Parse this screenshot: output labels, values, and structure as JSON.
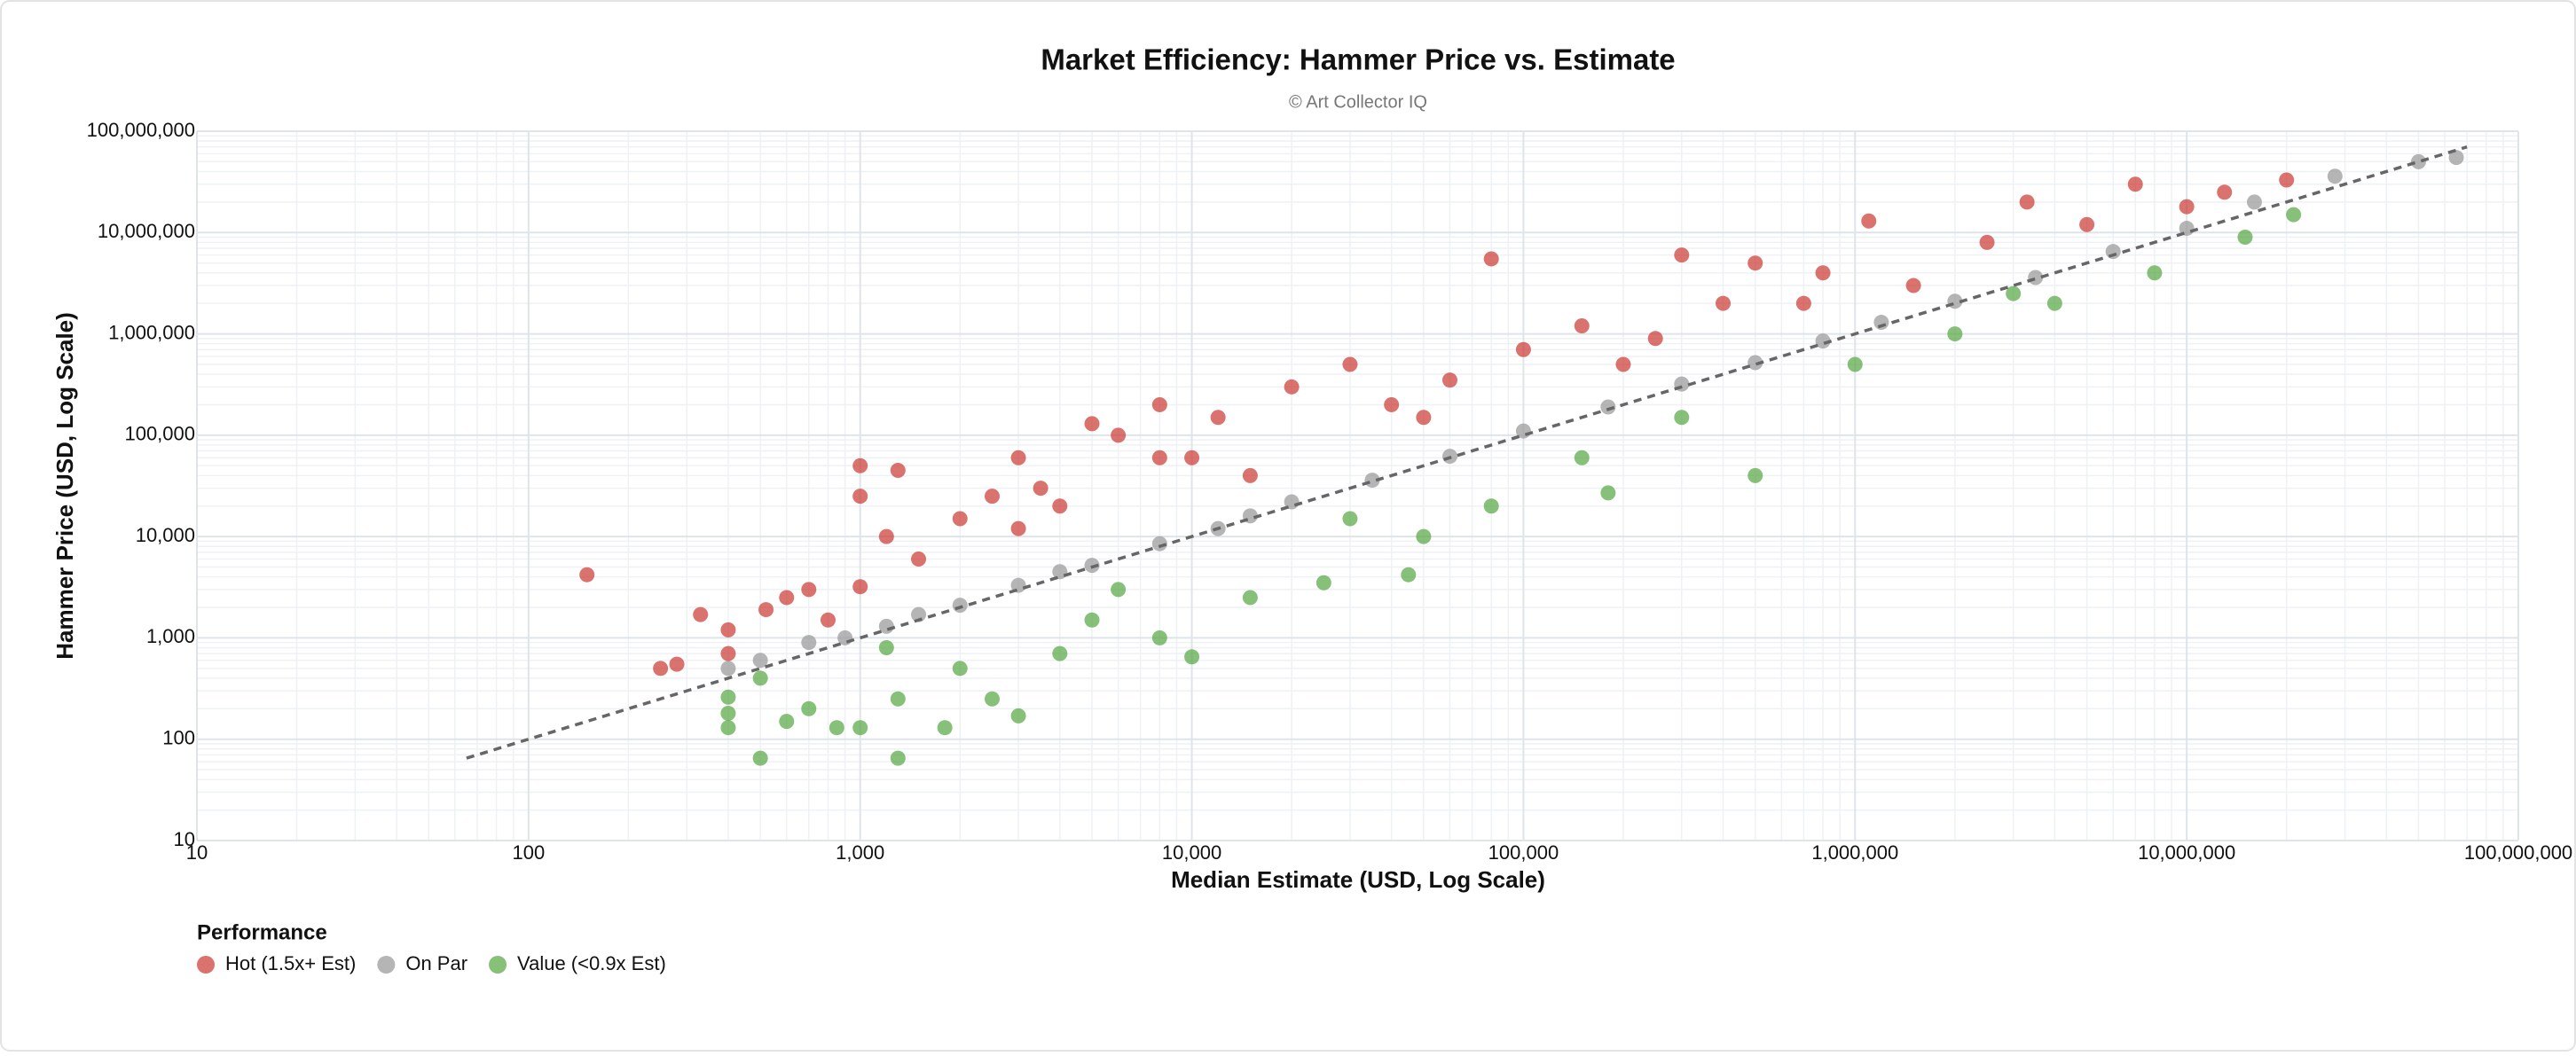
{
  "chart_data": {
    "type": "scatter",
    "title": "Market Efficiency: Hammer Price vs. Estimate",
    "subtitle": "© Art Collector IQ",
    "x_label": "Median Estimate (USD, Log Scale)",
    "y_label": "Hammer Price (USD, Log Scale)",
    "x_log": true,
    "y_log": true,
    "grid": true,
    "xlim": [
      10,
      100000000
    ],
    "ylim": [
      10,
      100000000
    ],
    "xticks": [
      10,
      100,
      {
        "value": 1000,
        "label": "1,000"
      },
      {
        "value": 10000,
        "label": "10,000"
      },
      {
        "value": 100000,
        "label": "100,000"
      },
      {
        "value": 1000000,
        "label": "1,000,000"
      },
      {
        "value": 10000000,
        "label": "10,000,000"
      },
      {
        "value": 100000000,
        "label": "100,000,000"
      }
    ],
    "yticks": [
      10,
      100,
      {
        "value": 1000,
        "label": "1,000"
      },
      {
        "value": 10000,
        "label": "10,000"
      },
      {
        "value": 100000,
        "label": "100,000"
      },
      {
        "value": 1000000,
        "label": "1,000,000"
      },
      {
        "value": 10000000,
        "label": "10,000,000"
      },
      {
        "value": 100000000,
        "label": "100,000,000"
      }
    ],
    "legend_title": "Performance",
    "legend_position": "bottom-left",
    "reference_line": {
      "x": [
        65,
        70000000
      ],
      "y": [
        65,
        70000000
      ],
      "color": "#666666"
    },
    "series": [
      {
        "name": "Hot (1.5x+ Est)",
        "color": "#cc3b36",
        "x": [
          150,
          250,
          280,
          330,
          400,
          400,
          520,
          600,
          700,
          800,
          1000,
          1000,
          1000,
          1200,
          1300,
          1500,
          2000,
          2500,
          3000,
          3500,
          4000,
          5000,
          6000,
          8000,
          10000,
          12000,
          15000,
          20000,
          30000,
          40000,
          60000,
          80000,
          100000,
          150000,
          200000,
          300000,
          400000,
          500000,
          800000,
          1100000,
          1500000,
          2500000,
          3300000,
          5000000,
          7000000,
          10000000,
          13000000,
          20000000,
          8000,
          3000,
          50000,
          250000,
          700000
        ],
        "values": [
          4200,
          500,
          550,
          1700,
          1200,
          700,
          1900,
          2500,
          3000,
          1500,
          3200,
          50000,
          25000,
          10000,
          45000,
          6000,
          15000,
          25000,
          60000,
          30000,
          20000,
          130000,
          100000,
          200000,
          60000,
          150000,
          40000,
          300000,
          500000,
          200000,
          350000,
          5500000,
          700000,
          1200000,
          500000,
          6000000,
          2000000,
          5000000,
          4000000,
          13000000,
          3000000,
          8000000,
          20000000,
          12000000,
          30000000,
          18000000,
          25000000,
          33000000,
          60000,
          12000,
          150000,
          900000,
          2000000
        ]
      },
      {
        "name": "On Par",
        "color": "#999999",
        "x": [
          400,
          500,
          700,
          900,
          1200,
          2000,
          3000,
          5000,
          8000,
          12000,
          20000,
          35000,
          60000,
          100000,
          180000,
          300000,
          500000,
          800000,
          1200000,
          2000000,
          3500000,
          6000000,
          10000000,
          16000000,
          28000000,
          50000000,
          65000000,
          1500,
          4000,
          15000
        ],
        "values": [
          500,
          600,
          900,
          1000,
          1300,
          2100,
          3300,
          5200,
          8500,
          12000,
          22000,
          36000,
          62000,
          110000,
          190000,
          320000,
          520000,
          850000,
          1300000,
          2100000,
          3600000,
          6500000,
          11000000,
          20000000,
          36000000,
          50000000,
          55000000,
          1700,
          4500,
          16000
        ]
      },
      {
        "name": "Value (<0.9x Est)",
        "color": "#58a845",
        "x": [
          400,
          400,
          400,
          500,
          500,
          600,
          700,
          850,
          1000,
          1300,
          1300,
          1800,
          2000,
          2500,
          3000,
          4000,
          5000,
          8000,
          10000,
          15000,
          25000,
          45000,
          50000,
          80000,
          180000,
          150000,
          300000,
          500000,
          1000000,
          2000000,
          4000000,
          8000000,
          15000000,
          21000000,
          1200,
          6000,
          30000,
          3000000
        ],
        "values": [
          180,
          130,
          260,
          65,
          400,
          150,
          200,
          130,
          130,
          65,
          250,
          130,
          500,
          250,
          170,
          700,
          1500,
          1000,
          650,
          2500,
          3500,
          4200,
          10000,
          20000,
          27000,
          60000,
          150000,
          40000,
          500000,
          1000000,
          2000000,
          4000000,
          9000000,
          15000000,
          800,
          3000,
          15000,
          2500000
        ]
      }
    ]
  }
}
